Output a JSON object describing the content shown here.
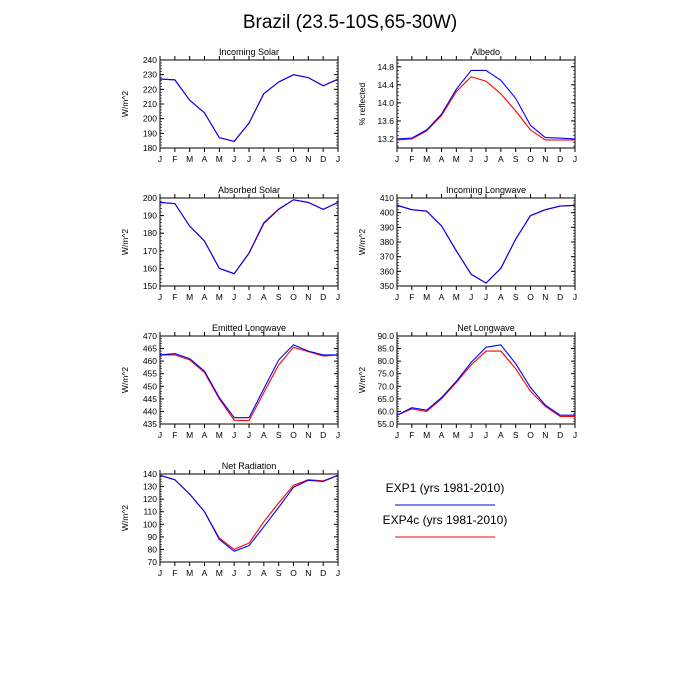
{
  "title": "Brazil (23.5-10S,65-30W)",
  "months": [
    "J",
    "F",
    "M",
    "A",
    "M",
    "J",
    "J",
    "A",
    "S",
    "O",
    "N",
    "D",
    "J"
  ],
  "legend": [
    {
      "label": "EXP1 (yrs 1981-2010)",
      "color": "#0000ff"
    },
    {
      "label": "EXP4c (yrs 1981-2010)",
      "color": "#ff0000"
    }
  ],
  "chart_data": [
    {
      "type": "line",
      "title": "Incoming Solar",
      "ylabel": "W/m^2",
      "ylim": [
        180,
        240
      ],
      "yticks": [
        180,
        190,
        200,
        210,
        220,
        230,
        240
      ],
      "ytick_labels": [
        "180",
        "190",
        "200",
        "210",
        "220",
        "230",
        "240"
      ],
      "series": [
        {
          "name": "EXP1 (yrs 1981-2010)",
          "color": "#0000ff",
          "values": [
            227,
            226.5,
            212.5,
            204,
            187,
            184.5,
            197,
            217,
            225,
            230,
            228,
            222.5,
            227
          ]
        },
        {
          "name": "EXP4c (yrs 1981-2010)",
          "color": "#ff0000",
          "values": [
            227,
            226.5,
            212.5,
            204,
            187,
            184.5,
            197,
            217,
            225,
            230,
            228,
            222.5,
            227
          ]
        }
      ]
    },
    {
      "type": "line",
      "title": "Albedo",
      "ylabel": "% reflected",
      "ylim": [
        13.0,
        14.95
      ],
      "yticks": [
        13.2,
        13.6,
        14.0,
        14.4,
        14.8
      ],
      "ytick_labels": [
        "13.2",
        "13.6",
        "14.0",
        "14.4",
        "14.8"
      ],
      "series": [
        {
          "name": "EXP1 (yrs 1981-2010)",
          "color": "#0000ff",
          "values": [
            13.2,
            13.22,
            13.4,
            13.75,
            14.3,
            14.72,
            14.72,
            14.5,
            14.1,
            13.5,
            13.23,
            13.22,
            13.2
          ]
        },
        {
          "name": "EXP4c (yrs 1981-2010)",
          "color": "#ff0000",
          "values": [
            13.18,
            13.2,
            13.38,
            13.72,
            14.25,
            14.58,
            14.48,
            14.2,
            13.82,
            13.4,
            13.18,
            13.18,
            13.18
          ]
        }
      ]
    },
    {
      "type": "line",
      "title": "Absorbed Solar",
      "ylabel": "W/m^2",
      "ylim": [
        150,
        200
      ],
      "yticks": [
        150,
        160,
        170,
        180,
        190,
        200
      ],
      "ytick_labels": [
        "150",
        "160",
        "170",
        "180",
        "190",
        "200"
      ],
      "series": [
        {
          "name": "EXP1 (yrs 1981-2010)",
          "color": "#0000ff",
          "values": [
            197.5,
            196.8,
            184,
            175.5,
            160,
            157,
            168.5,
            185.5,
            193.5,
            199,
            197.5,
            193.5,
            197.5
          ]
        },
        {
          "name": "EXP4c (yrs 1981-2010)",
          "color": "#ff0000",
          "values": [
            197.5,
            196.8,
            184,
            175.5,
            160,
            157,
            168.8,
            186,
            193.8,
            199,
            197.5,
            193.5,
            197.5
          ]
        }
      ]
    },
    {
      "type": "line",
      "title": "Incoming Longwave",
      "ylabel": "W/m^2",
      "ylim": [
        350,
        410
      ],
      "yticks": [
        350,
        360,
        370,
        380,
        390,
        400,
        410
      ],
      "ytick_labels": [
        "350",
        "360",
        "370",
        "380",
        "390",
        "400",
        "410"
      ],
      "series": [
        {
          "name": "EXP1 (yrs 1981-2010)",
          "color": "#0000ff",
          "values": [
            405,
            402,
            401,
            391,
            374,
            358,
            352,
            362,
            382,
            398,
            402,
            404.5,
            405
          ]
        },
        {
          "name": "EXP4c (yrs 1981-2010)",
          "color": "#ff0000",
          "values": [
            405,
            402,
            401,
            391,
            374,
            358,
            352,
            362,
            382,
            398,
            402,
            404.5,
            405
          ]
        }
      ]
    },
    {
      "type": "line",
      "title": "Emitted Longwave",
      "ylabel": "W/m^2",
      "ylim": [
        435,
        470
      ],
      "yticks": [
        435,
        440,
        445,
        450,
        455,
        460,
        465,
        470
      ],
      "ytick_labels": [
        "435",
        "440",
        "445",
        "450",
        "455",
        "460",
        "465",
        "470"
      ],
      "series": [
        {
          "name": "EXP1 (yrs 1981-2010)",
          "color": "#0000ff",
          "values": [
            462.5,
            463,
            461,
            456,
            445.5,
            437.5,
            437.5,
            449,
            460.5,
            466.5,
            464,
            462.5,
            462.5
          ]
        },
        {
          "name": "EXP4c (yrs 1981-2010)",
          "color": "#ff0000",
          "values": [
            462.5,
            462.5,
            460.5,
            455.5,
            445,
            436.5,
            436.3,
            447.5,
            458.5,
            465.5,
            463.8,
            462,
            462.5
          ]
        }
      ]
    },
    {
      "type": "line",
      "title": "Net Longwave",
      "ylabel": "W/m^2",
      "ylim": [
        55,
        90
      ],
      "yticks": [
        55,
        60,
        65,
        70,
        75,
        80,
        85,
        90
      ],
      "ytick_labels": [
        "55.0",
        "60.0",
        "65.0",
        "70.0",
        "75.0",
        "80.0",
        "85.0",
        "90.0"
      ],
      "series": [
        {
          "name": "EXP1 (yrs 1981-2010)",
          "color": "#0000ff",
          "values": [
            58.5,
            61.5,
            60.5,
            65.5,
            72,
            79.5,
            85.5,
            86.5,
            79,
            69.5,
            62.5,
            58.5,
            58.5
          ]
        },
        {
          "name": "EXP4c (yrs 1981-2010)",
          "color": "#ff0000",
          "values": [
            58.5,
            61,
            60,
            65,
            71.5,
            78.5,
            84,
            84,
            77,
            68,
            62,
            58,
            58
          ]
        }
      ]
    },
    {
      "type": "line",
      "title": "Net Radiation",
      "ylabel": "W/m^2",
      "ylim": [
        70,
        140
      ],
      "yticks": [
        70,
        80,
        90,
        100,
        110,
        120,
        130,
        140
      ],
      "ytick_labels": [
        "70",
        "80",
        "90",
        "100",
        "110",
        "120",
        "130",
        "140"
      ],
      "series": [
        {
          "name": "EXP1 (yrs 1981-2010)",
          "color": "#0000ff",
          "values": [
            139,
            135.5,
            124,
            110,
            88,
            78.5,
            83,
            98,
            113.5,
            129.5,
            135,
            134,
            139
          ]
        },
        {
          "name": "EXP4c (yrs 1981-2010)",
          "color": "#ff0000",
          "values": [
            139,
            135.5,
            124,
            110,
            89,
            80,
            85,
            102,
            117,
            131,
            135.5,
            134.5,
            139
          ]
        }
      ]
    }
  ]
}
